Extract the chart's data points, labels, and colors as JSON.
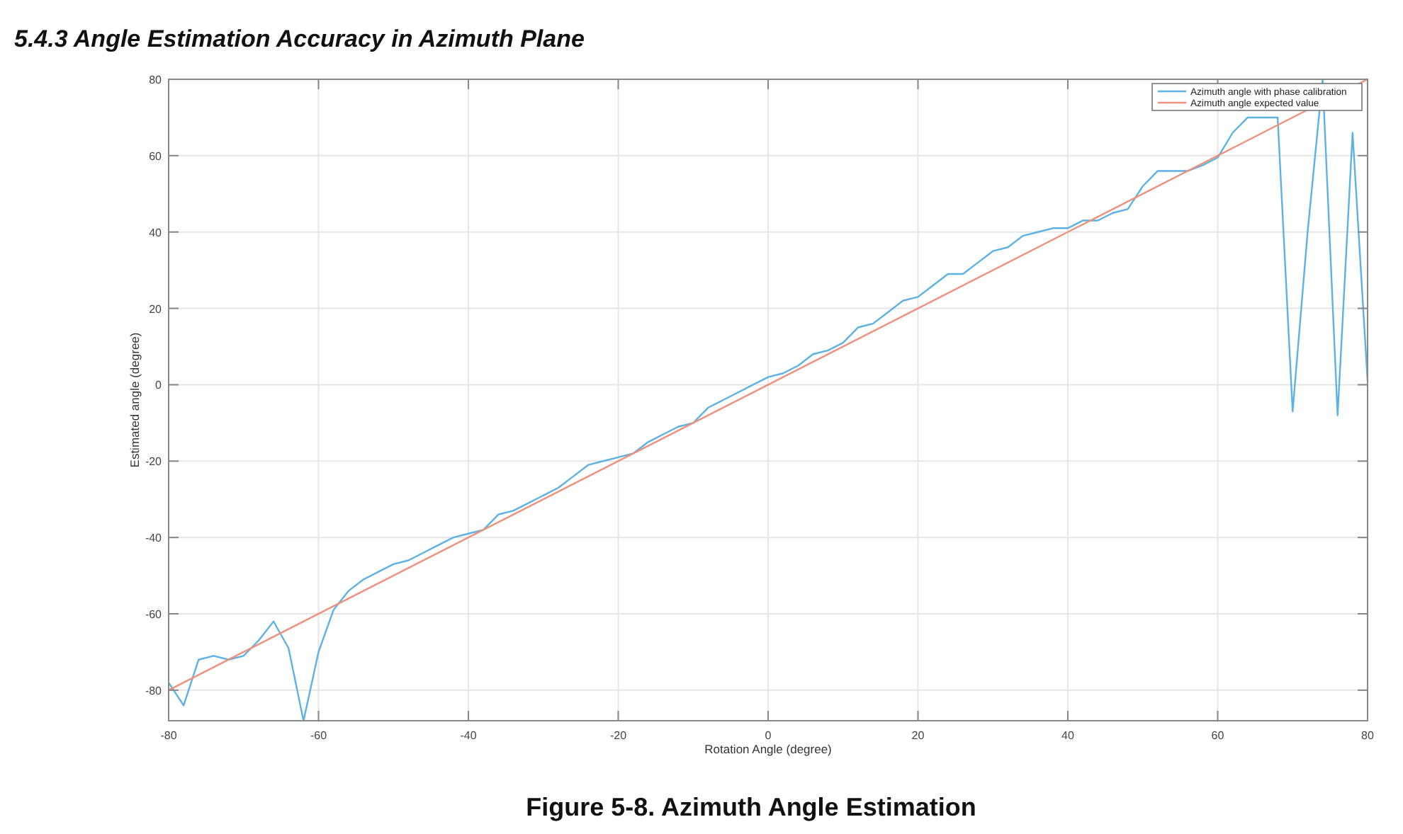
{
  "chart_data": {
    "type": "line",
    "title": "5.4.3 Angle Estimation Accuracy in Azimuth Plane",
    "xlabel": "Rotation Angle (degree)",
    "ylabel": "Estimated angle (degree)",
    "annotations": [
      "Figure 5-8. Azimuth Angle Estimation"
    ],
    "xlim": [
      -80,
      80
    ],
    "xticks": [
      -80,
      -60,
      -40,
      -20,
      0,
      20,
      40,
      60,
      80
    ],
    "ylim": [
      -88,
      80
    ],
    "yticks": [
      -80,
      -60,
      -40,
      -20,
      0,
      20,
      40,
      60,
      80
    ],
    "grid": true,
    "legend": "top right",
    "marker": "none",
    "line_style": "solid",
    "series": [
      {
        "name": "Azimuth angle with phase calibration",
        "color": "#5eb1e4",
        "x": [
          -80,
          -78,
          -76,
          -74,
          -72,
          -70,
          -68,
          -66,
          -64,
          -62,
          -60,
          -58,
          -56,
          -54,
          -52,
          -50,
          -48,
          -46,
          -44,
          -42,
          -40,
          -38,
          -36,
          -34,
          -32,
          -30,
          -28,
          -26,
          -24,
          -22,
          -20,
          -18,
          -16,
          -14,
          -12,
          -10,
          -8,
          -6,
          -4,
          -2,
          0,
          2,
          4,
          6,
          8,
          10,
          12,
          14,
          16,
          18,
          20,
          22,
          24,
          26,
          28,
          30,
          32,
          34,
          36,
          38,
          40,
          42,
          44,
          46,
          48,
          50,
          52,
          54,
          56,
          58,
          60,
          62,
          64,
          66,
          68,
          70,
          72,
          74,
          76,
          78,
          80
        ],
        "values": [
          -78,
          -84,
          -72,
          -71,
          -72,
          -71,
          -67,
          -62,
          -69,
          -88,
          -70,
          -59,
          -54,
          -51,
          -49,
          -47,
          -46,
          -44,
          -42,
          -40,
          -39,
          -38,
          -34,
          -33,
          -31,
          -29,
          -27,
          -24,
          -21,
          -20,
          -19,
          -18,
          -15,
          -13,
          -11,
          -10,
          -6,
          -4,
          -2,
          0,
          2,
          3,
          5,
          8,
          9,
          11,
          15,
          16,
          19,
          22,
          23,
          26,
          29,
          29,
          32,
          35,
          36,
          39,
          40,
          41,
          41,
          43,
          43,
          45,
          46,
          52,
          56,
          56,
          56,
          57.5,
          59.5,
          66,
          70,
          70,
          70,
          -7,
          40,
          80,
          -8,
          66,
          1
        ]
      },
      {
        "name": "Azimuth angle expected value",
        "color": "#f0907a",
        "x": [
          -80,
          80
        ],
        "values": [
          -80,
          80
        ]
      }
    ]
  }
}
